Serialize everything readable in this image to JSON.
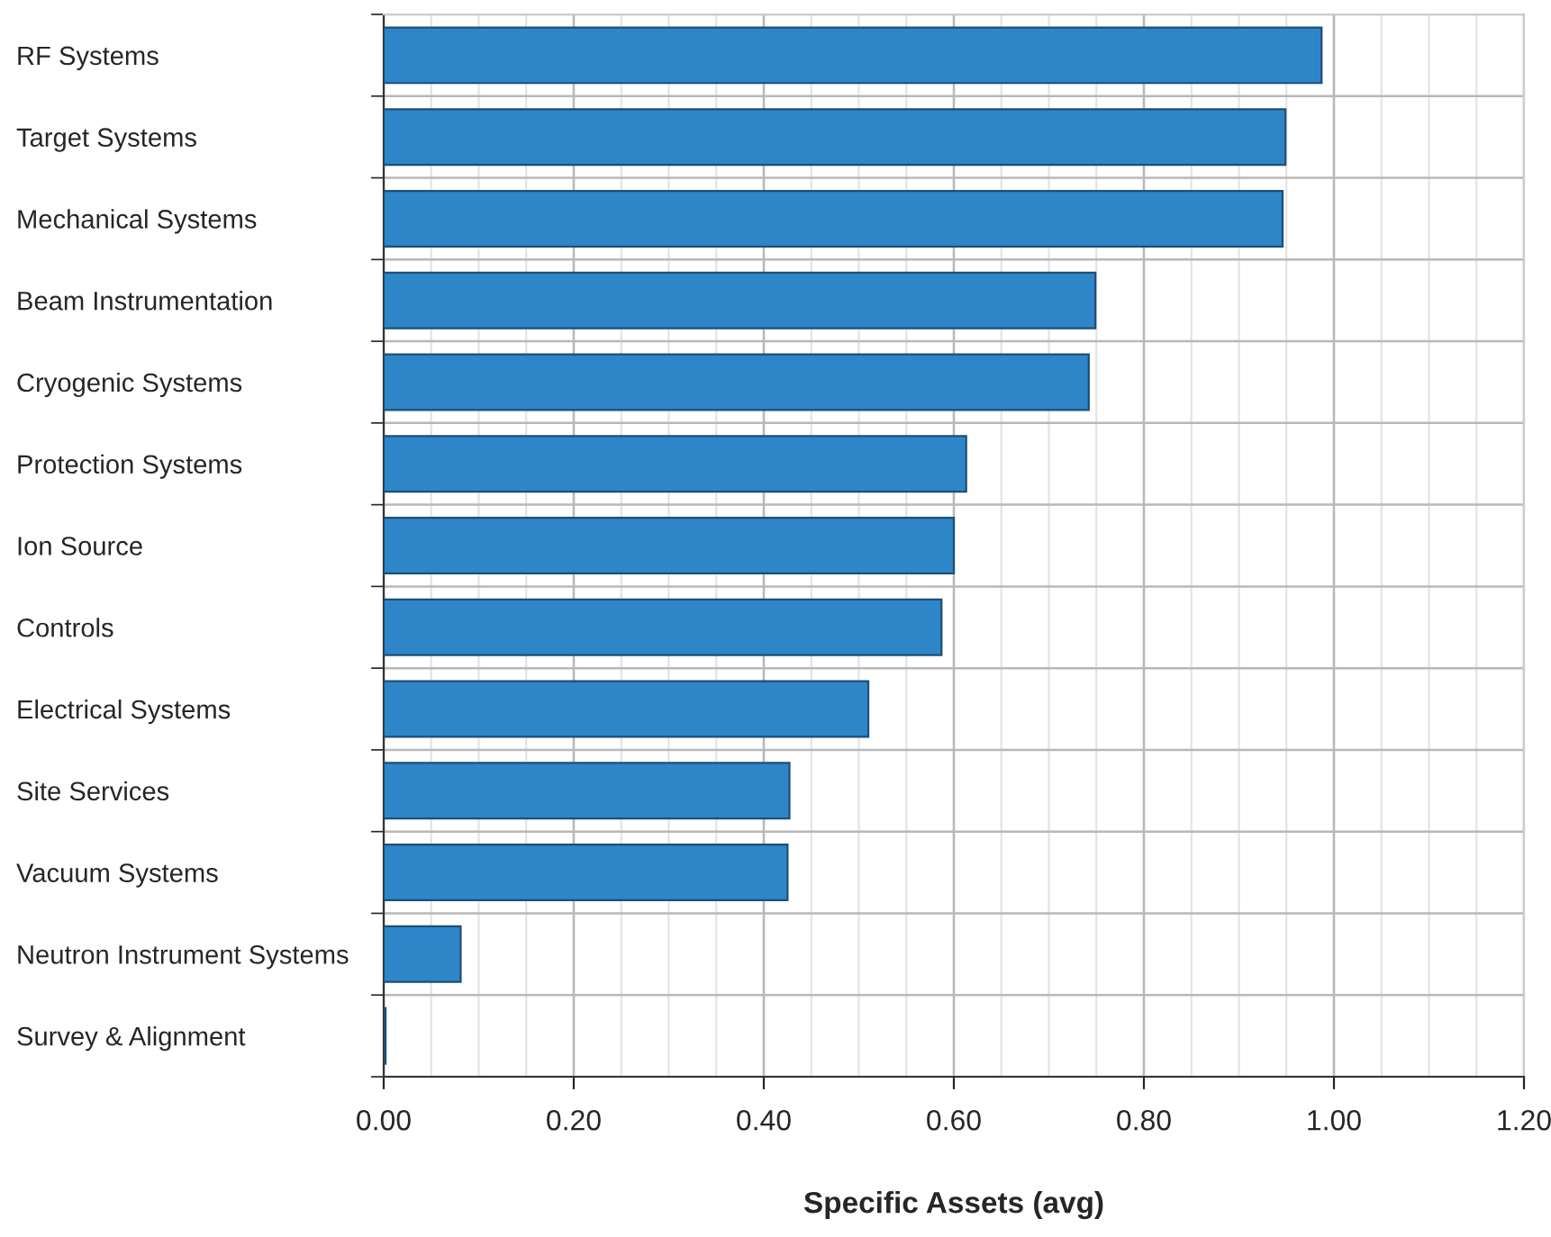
{
  "chart_data": {
    "type": "bar",
    "orientation": "horizontal",
    "xlabel": "Specific Assets (avg)",
    "categories": [
      "RF Systems",
      "Target Systems",
      "Mechanical Systems",
      "Beam Instrumentation",
      "Cryogenic Systems",
      "Protection Systems",
      "Ion Source",
      "Controls",
      "Electrical Systems",
      "Site Services",
      "Vacuum Systems",
      "Neutron Instrument Systems",
      "Survey & Alignment"
    ],
    "values": [
      0.987,
      0.949,
      0.946,
      0.749,
      0.742,
      0.613,
      0.6,
      0.587,
      0.51,
      0.427,
      0.425,
      0.081,
      0.002
    ],
    "color": "#2e86c8",
    "xlim": [
      0,
      1.2
    ],
    "xticks": [
      {
        "value": 0,
        "label": "0.00"
      },
      {
        "value": 0.2,
        "label": "0.20"
      },
      {
        "value": 0.4,
        "label": "0.40"
      },
      {
        "value": 0.6,
        "label": "0.60"
      },
      {
        "value": 0.8,
        "label": "0.80"
      },
      {
        "value": 1.0,
        "label": "1.00"
      },
      {
        "value": 1.2,
        "label": "1.20"
      }
    ],
    "grid": true
  }
}
